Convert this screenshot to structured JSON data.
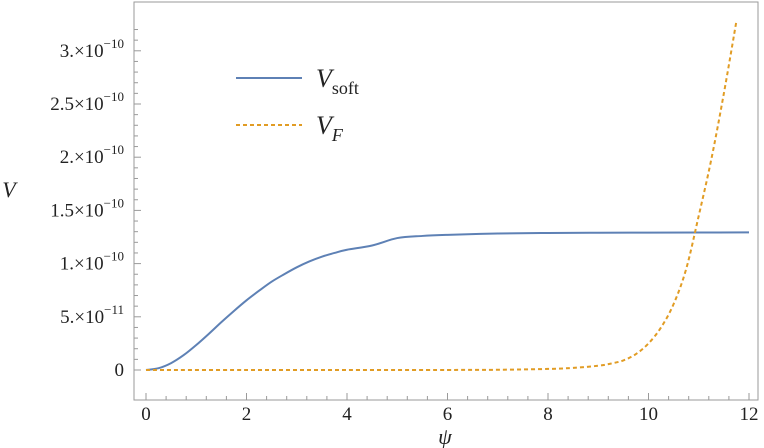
{
  "chart_data": {
    "type": "line",
    "title": "",
    "xlabel": "ψ",
    "ylabel": "V",
    "xlim": [
      0,
      12
    ],
    "ylim": [
      0,
      3.3e-10
    ],
    "x_ticks": [
      0,
      2,
      4,
      6,
      8,
      10,
      12
    ],
    "x_tick_labels": [
      "0",
      "2",
      "4",
      "6",
      "8",
      "10",
      "12"
    ],
    "y_ticks": [
      0,
      5e-11,
      1e-10,
      1.5e-10,
      2e-10,
      2.5e-10,
      3e-10
    ],
    "y_tick_labels": [
      {
        "mantissa": "0",
        "times": "",
        "base": "",
        "exponent": ""
      },
      {
        "mantissa": "5.",
        "times": "×",
        "base": "10",
        "exponent": "−11"
      },
      {
        "mantissa": "1.",
        "times": "×",
        "base": "10",
        "exponent": "−10"
      },
      {
        "mantissa": "1.5",
        "times": "×",
        "base": "10",
        "exponent": "−10"
      },
      {
        "mantissa": "2.",
        "times": "×",
        "base": "10",
        "exponent": "−10"
      },
      {
        "mantissa": "2.5",
        "times": "×",
        "base": "10",
        "exponent": "−10"
      },
      {
        "mantissa": "3.",
        "times": "×",
        "base": "10",
        "exponent": "−10"
      }
    ],
    "grid": false,
    "legend_position": "top-left",
    "series": [
      {
        "name_main": "V",
        "name_sub": "soft",
        "color": "#5e81b5",
        "dash": "solid",
        "x": [
          0,
          0.25,
          0.5,
          0.75,
          1,
          1.25,
          1.5,
          1.75,
          2,
          2.25,
          2.5,
          2.75,
          3,
          3.25,
          3.5,
          3.75,
          4,
          4.5,
          5,
          5.5,
          6,
          7,
          8,
          9,
          10,
          11,
          12
        ],
        "y": [
          0,
          1.7e-12,
          6.5e-12,
          1.4e-11,
          2.35e-11,
          3.4e-11,
          4.5e-11,
          5.55e-11,
          6.55e-11,
          7.45e-11,
          8.3e-11,
          9e-11,
          9.65e-11,
          1.02e-10,
          1.065e-10,
          1.1e-10,
          1.13e-10,
          1.17e-10,
          1.24e-10,
          1.26e-10,
          1.27e-10,
          1.283e-10,
          1.288e-10,
          1.29e-10,
          1.291e-10,
          1.292e-10,
          1.293e-10
        ]
      },
      {
        "name_main": "V",
        "name_sub": "F",
        "color": "#e19c24",
        "dash": "dashed",
        "x": [
          0,
          2,
          4,
          6,
          7,
          8,
          8.5,
          9,
          9.25,
          9.5,
          9.75,
          10,
          10.25,
          10.5,
          10.75,
          11,
          11.25,
          11.5,
          11.75
        ],
        "y": [
          0,
          0,
          0,
          5e-14,
          2e-13,
          1e-12,
          2e-12,
          4e-12,
          6e-12,
          9e-12,
          1.5e-11,
          2.5e-11,
          4e-11,
          6.2e-11,
          9.5e-11,
          1.45e-10,
          1.98e-10,
          2.6e-10,
          3.28e-10
        ]
      }
    ]
  }
}
